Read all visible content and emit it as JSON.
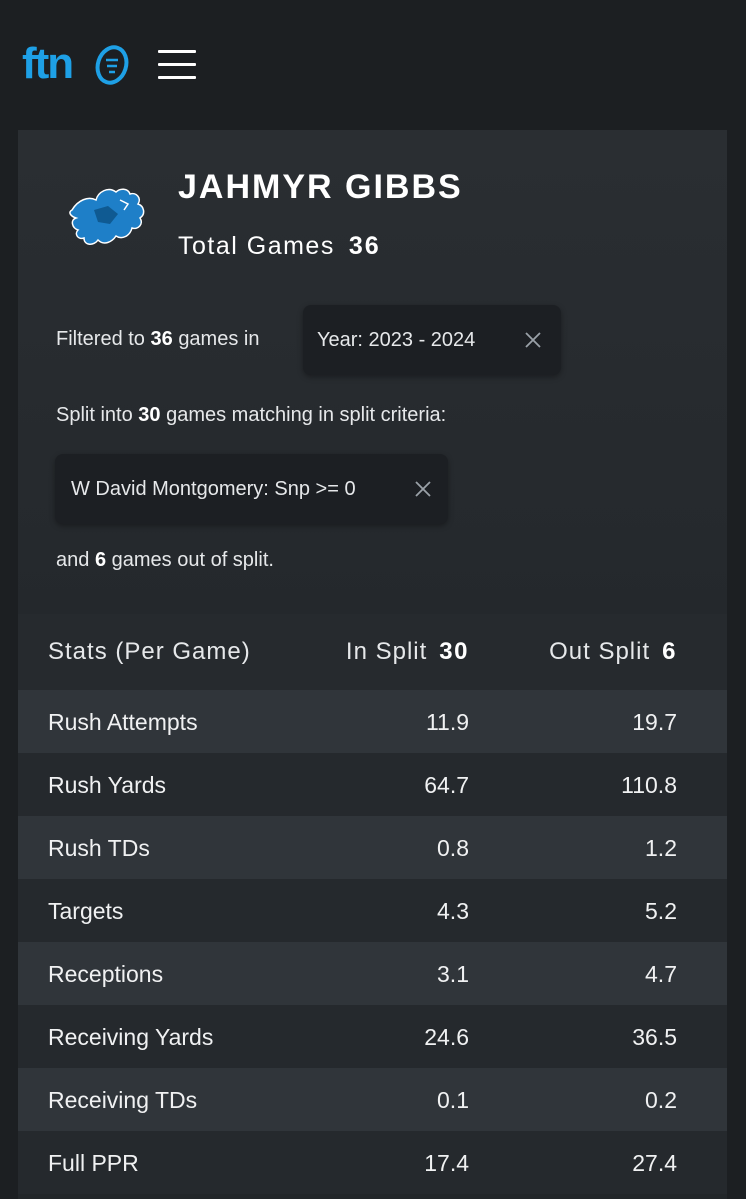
{
  "header": {
    "logo_text": "ftn",
    "menu_icon": "hamburger-menu-icon"
  },
  "player": {
    "name": "JAHMYR GIBBS",
    "team_logo_icon": "detroit-lions-logo",
    "total_games_label": "Total Games",
    "total_games_value": "36"
  },
  "filter": {
    "prefix": "Filtered to",
    "count": "36",
    "suffix": "games in",
    "chip_label": "Year: 2023 - 2024"
  },
  "split": {
    "prefix": "Split into",
    "count": "30",
    "suffix": "games matching in split criteria:",
    "chip_label": "W David Montgomery: Snp >= 0"
  },
  "out_split": {
    "prefix": "and",
    "count": "6",
    "suffix": "games out of split."
  },
  "table": {
    "headers": {
      "stat": "Stats (Per Game)",
      "in_split_label": "In Split",
      "in_split_count": "30",
      "out_split_label": "Out Split",
      "out_split_count": "6"
    },
    "rows": [
      {
        "stat": "Rush Attempts",
        "in": "11.9",
        "out": "19.7"
      },
      {
        "stat": "Rush Yards",
        "in": "64.7",
        "out": "110.8"
      },
      {
        "stat": "Rush TDs",
        "in": "0.8",
        "out": "1.2"
      },
      {
        "stat": "Targets",
        "in": "4.3",
        "out": "5.2"
      },
      {
        "stat": "Receptions",
        "in": "3.1",
        "out": "4.7"
      },
      {
        "stat": "Receiving Yards",
        "in": "24.6",
        "out": "36.5"
      },
      {
        "stat": "Receiving TDs",
        "in": "0.1",
        "out": "0.2"
      },
      {
        "stat": "Full PPR",
        "in": "17.4",
        "out": "27.4"
      }
    ]
  },
  "colors": {
    "background": "#1c1f22",
    "panel": "#2a2e32",
    "brand_blue": "#1ea0e6",
    "lions_blue": "#1e7fc8"
  }
}
